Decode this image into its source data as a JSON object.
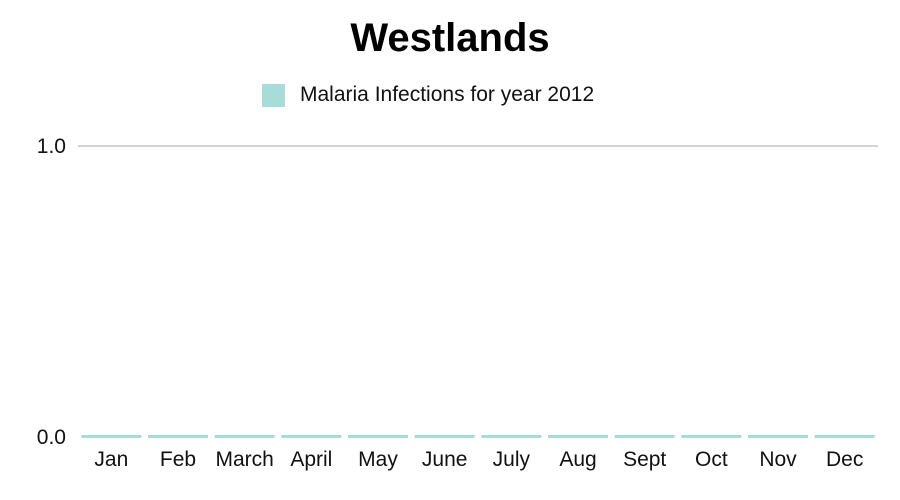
{
  "chart_data": {
    "type": "bar",
    "title": "Westlands",
    "categories": [
      "Jan",
      "Feb",
      "March",
      "April",
      "May",
      "June",
      "July",
      "Aug",
      "Sept",
      "Oct",
      "Nov",
      "Dec"
    ],
    "series": [
      {
        "name": "Malaria Infections for year 2012",
        "values": [
          0,
          0,
          0,
          0,
          0,
          0,
          0,
          0,
          0,
          0,
          0,
          0
        ],
        "color": "#a8dcd9"
      }
    ],
    "ylim": [
      0,
      1
    ],
    "yticks": [
      "0.0",
      "1.0"
    ],
    "grid": true,
    "legend_position": "top-center"
  }
}
